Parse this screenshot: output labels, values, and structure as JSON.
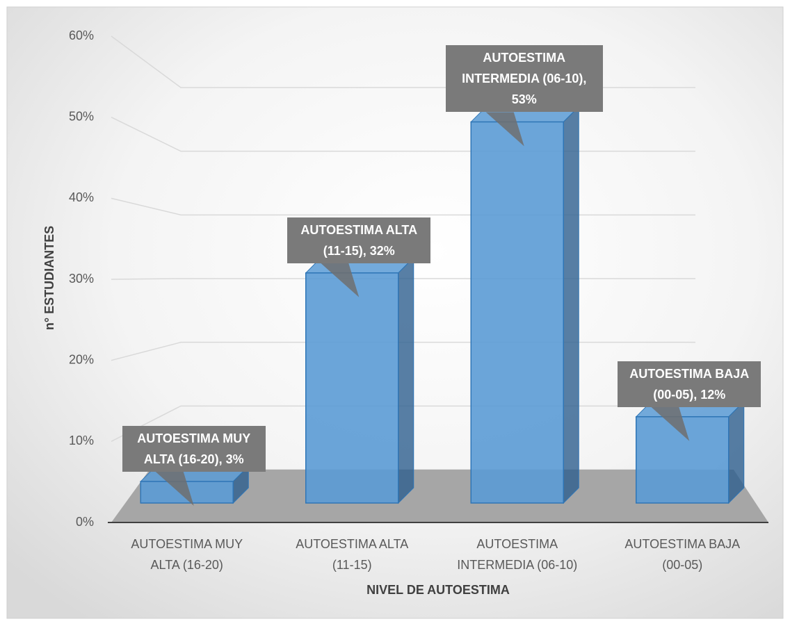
{
  "chart_data": {
    "type": "bar",
    "x_label": "NIVEL DE AUTOESTIMA",
    "y_label": "n° ESTUDIANTES",
    "categories": [
      "AUTOESTIMA MUY ALTA (16-20)",
      "AUTOESTIMA ALTA (11-15)",
      "AUTOESTIMA INTERMEDIA (06-10)",
      "AUTOESTIMA BAJA (00-05)"
    ],
    "values": [
      3,
      32,
      53,
      12
    ],
    "value_labels": [
      "AUTOESTIMA MUY ALTA (16-20), 3%",
      "AUTOESTIMA ALTA (11-15), 32%",
      "AUTOESTIMA INTERMEDIA (06-10), 53%",
      "AUTOESTIMA BAJA (00-05), 12%"
    ],
    "color": "#5b9bd5",
    "ylim": [
      0,
      60
    ],
    "yticks": [
      {
        "value": 0,
        "label": "0%"
      },
      {
        "value": 10,
        "label": "10%"
      },
      {
        "value": 20,
        "label": "20%"
      },
      {
        "value": 30,
        "label": "30%"
      },
      {
        "value": 40,
        "label": "40%"
      },
      {
        "value": 50,
        "label": "50%"
      },
      {
        "value": 60,
        "label": "60%"
      }
    ],
    "grid": true
  }
}
